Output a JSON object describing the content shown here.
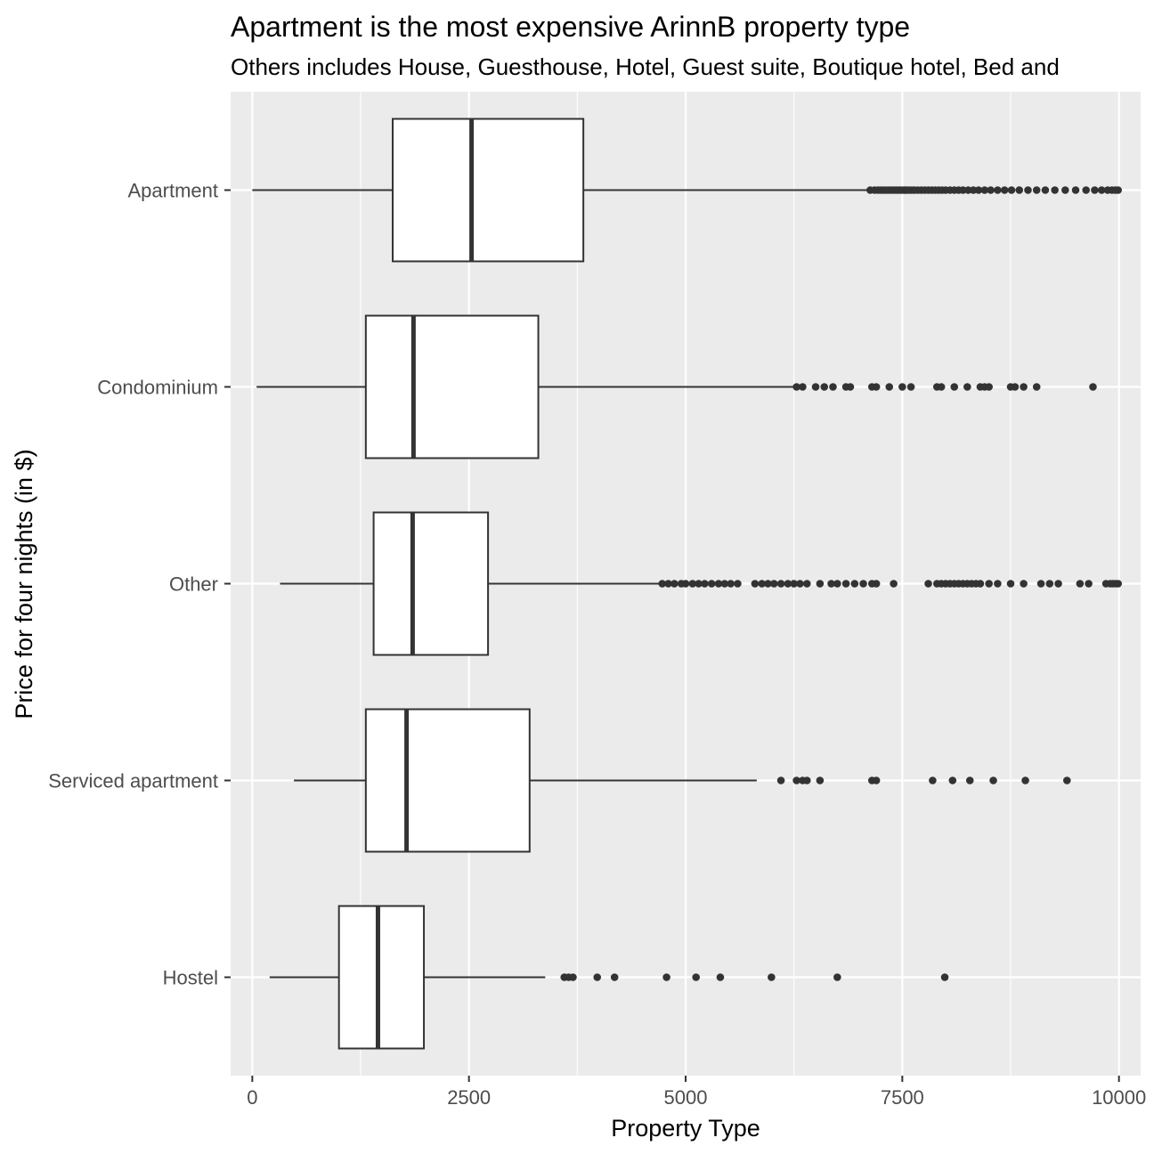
{
  "chart_data": {
    "type": "boxplot",
    "orientation": "horizontal",
    "title": "Apartment is the most expensive ArinnB property type",
    "subtitle": "Others includes House, Guesthouse, Hotel, Guest suite, Boutique hotel, Bed and",
    "xlabel": "Property Type",
    "ylabel": "Price for four nights (in $)",
    "xlim": [
      -250,
      10250
    ],
    "xticks": [
      0,
      2500,
      5000,
      7500,
      10000
    ],
    "xtick_labels": [
      "0",
      "2500",
      "5000",
      "7500",
      "10000"
    ],
    "grid": true,
    "colors": {
      "panel": "#ebebeb",
      "grid": "#ffffff",
      "box_fill": "#ffffff",
      "line": "#333333",
      "outlier": "#333333",
      "tick_text": "#4d4d4d"
    },
    "categories": [
      "Apartment",
      "Condominium",
      "Other",
      "Serviced apartment",
      "Hostel"
    ],
    "boxes": [
      {
        "category": "Apartment",
        "min": 0,
        "q1": 1620,
        "median": 2530,
        "q3": 3820,
        "max": 7100,
        "outliers": [
          7130,
          7180,
          7220,
          7250,
          7280,
          7310,
          7340,
          7370,
          7400,
          7430,
          7460,
          7490,
          7520,
          7550,
          7580,
          7610,
          7640,
          7680,
          7720,
          7760,
          7800,
          7840,
          7880,
          7920,
          7960,
          8000,
          8050,
          8100,
          8150,
          8200,
          8260,
          8320,
          8380,
          8450,
          8520,
          8600,
          8680,
          8760,
          8850,
          8950,
          9050,
          9150,
          9260,
          9380,
          9500,
          9620,
          9720,
          9800,
          9870,
          9920,
          9960,
          9990
        ]
      },
      {
        "category": "Condominium",
        "min": 50,
        "q1": 1310,
        "median": 1860,
        "q3": 3300,
        "max": 6250,
        "outliers": [
          6280,
          6350,
          6500,
          6600,
          6700,
          6850,
          6900,
          7150,
          7200,
          7350,
          7500,
          7600,
          7900,
          7950,
          8100,
          8250,
          8400,
          8450,
          8500,
          8750,
          8800,
          8900,
          9050,
          9700
        ]
      },
      {
        "category": "Other",
        "min": 320,
        "q1": 1400,
        "median": 1850,
        "q3": 2720,
        "max": 4700,
        "outliers": [
          4730,
          4800,
          4870,
          4950,
          5000,
          5080,
          5150,
          5220,
          5300,
          5380,
          5450,
          5520,
          5600,
          5800,
          5880,
          5950,
          6020,
          6100,
          6180,
          6250,
          6320,
          6400,
          6550,
          6680,
          6750,
          6850,
          6950,
          7050,
          7150,
          7200,
          7400,
          7800,
          7900,
          7950,
          8000,
          8050,
          8100,
          8150,
          8200,
          8250,
          8300,
          8350,
          8400,
          8500,
          8600,
          8750,
          8900,
          9100,
          9200,
          9300,
          9550,
          9650,
          9850,
          9900,
          9930,
          9960,
          9990
        ]
      },
      {
        "category": "Serviced apartment",
        "min": 480,
        "q1": 1310,
        "median": 1780,
        "q3": 3200,
        "max": 5820,
        "outliers": [
          6100,
          6280,
          6350,
          6400,
          6550,
          7150,
          7200,
          7850,
          8080,
          8280,
          8550,
          8920,
          9400
        ]
      },
      {
        "category": "Hostel",
        "min": 200,
        "q1": 1000,
        "median": 1450,
        "q3": 1980,
        "max": 3380,
        "outliers": [
          3600,
          3650,
          3700,
          3980,
          4180,
          4780,
          5120,
          5400,
          5990,
          6750,
          7990
        ]
      }
    ]
  }
}
